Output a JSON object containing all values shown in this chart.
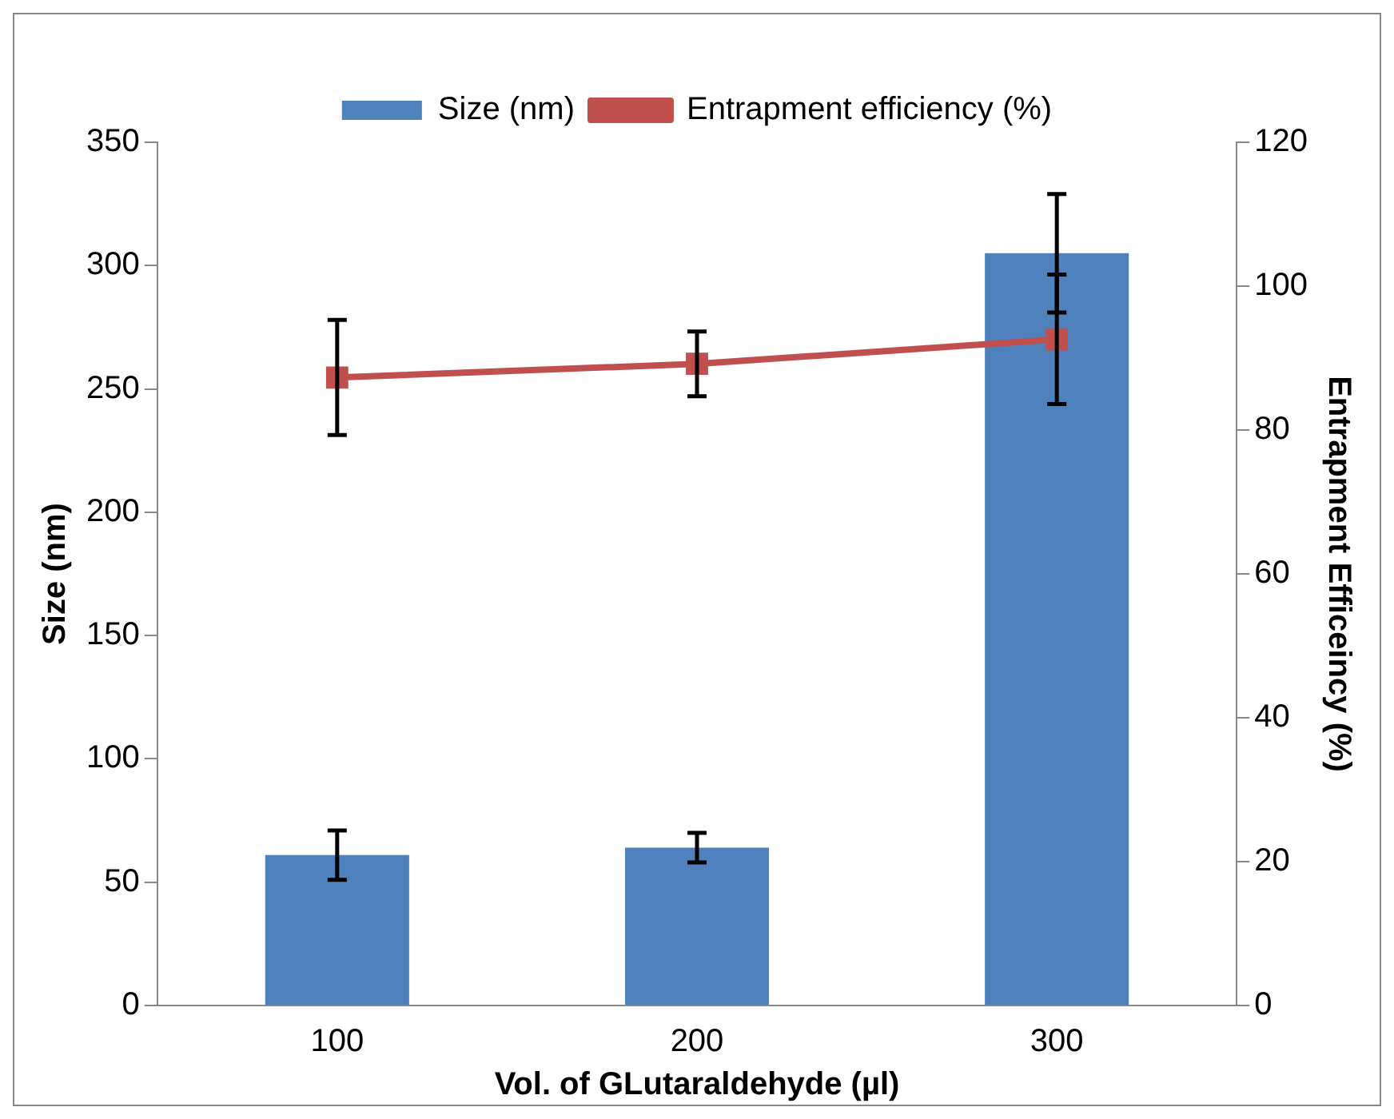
{
  "chart_data": {
    "type": "bar",
    "xlabel": "Vol. of GLutaraldehyde (µl)",
    "ylabel": "Size (nm)",
    "y2label": "Entrapment Efficeincy (%)",
    "categories": [
      "100",
      "200",
      "300"
    ],
    "series": [
      {
        "name": "Size (nm)",
        "color": "#4f81bd",
        "values": [
          61,
          64,
          305
        ],
        "errors": [
          10,
          6,
          24
        ]
      },
      {
        "name": "Entrapment efficiency (%)",
        "type": "line",
        "axis": "y2",
        "color": "#c0504d",
        "marker": "square",
        "values": [
          87.3,
          89.2,
          92.6
        ],
        "errors": [
          8,
          4.5,
          9
        ]
      }
    ],
    "ylim": [
      0,
      350
    ],
    "yticks": [
      0,
      50,
      100,
      150,
      200,
      250,
      300,
      350
    ],
    "y2lim": [
      0,
      120
    ],
    "y2ticks": [
      0,
      20,
      40,
      60,
      80,
      100,
      120
    ],
    "grid": false,
    "legend": "top"
  }
}
